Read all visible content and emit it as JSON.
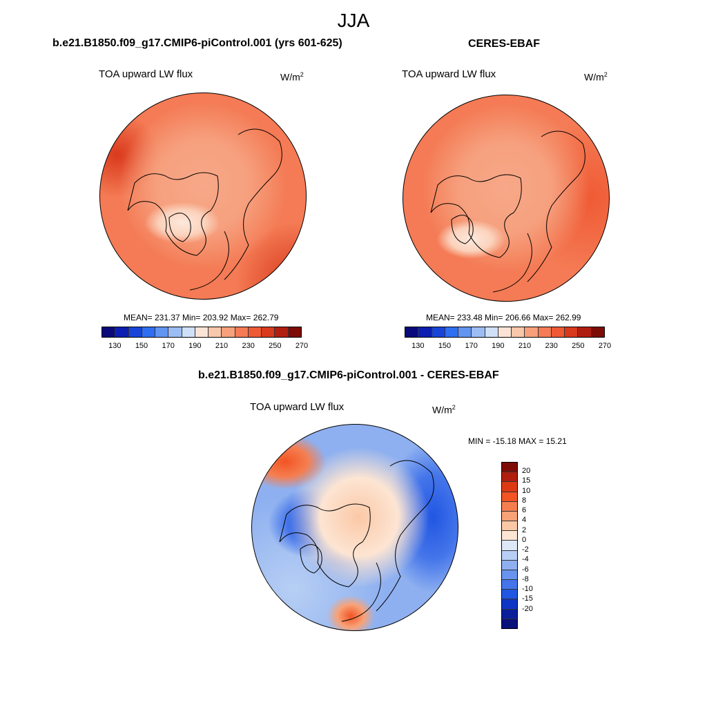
{
  "season": "JJA",
  "panels": {
    "model": {
      "title": "b.e21.B1850.f09_g17.CMIP6-piControl.001 (yrs 601-625)",
      "variable": "TOA upward LW flux",
      "unit_base": "W/m",
      "unit_exp": "2",
      "stats": "MEAN= 231.37  Min= 203.92  Max= 262.79"
    },
    "obs": {
      "title": "CERES-EBAF",
      "variable": "TOA upward LW flux",
      "unit_base": "W/m",
      "unit_exp": "2",
      "stats": "MEAN= 233.48  Min= 206.66  Max= 262.99"
    },
    "diff": {
      "title": "b.e21.B1850.f09_g17.CMIP6-piControl.001 - CERES-EBAF",
      "variable": "TOA upward LW flux",
      "unit_base": "W/m",
      "unit_exp": "2",
      "stats": "MIN = -15.18 MAX =  15.21"
    }
  },
  "colorbar_abs": {
    "colors": [
      "#0a0a7a",
      "#0d1fb0",
      "#1844d8",
      "#2e6ef0",
      "#6294f2",
      "#9cbdf4",
      "#cfe0f8",
      "#fbe4d6",
      "#f9c7ab",
      "#f7a07b",
      "#f47b55",
      "#ef5a34",
      "#d9391c",
      "#b01e0f",
      "#7d0c06"
    ],
    "labels": [
      "130",
      "150",
      "170",
      "190",
      "210",
      "230",
      "250",
      "270"
    ]
  },
  "colorbar_diff": {
    "colors": [
      "#7d0c06",
      "#b01e0f",
      "#dd3a14",
      "#f25424",
      "#f57e50",
      "#f8a277",
      "#fbc8a6",
      "#fde5d3",
      "#dce8f8",
      "#b7cff4",
      "#8eb0f0",
      "#6893ee",
      "#4475ea",
      "#2156e2",
      "#0f35c4",
      "#0a1f9a",
      "#08107a"
    ],
    "labels": [
      "20",
      "15",
      "10",
      "8",
      "6",
      "4",
      "2",
      "0",
      "-2",
      "-4",
      "-6",
      "-8",
      "-10",
      "-15",
      "-20"
    ]
  }
}
